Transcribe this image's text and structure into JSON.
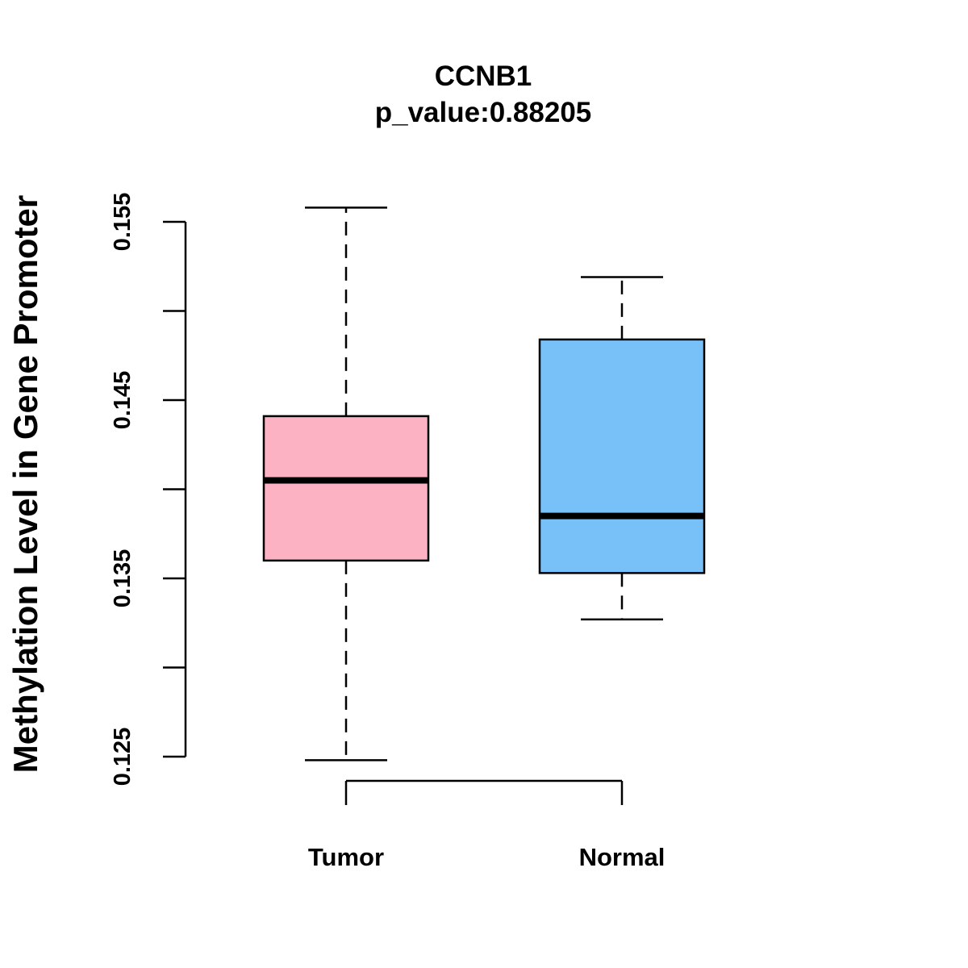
{
  "chart_data": {
    "type": "box",
    "title": "CCNB1",
    "subtitle": "p_value:0.88205",
    "xlabel": "",
    "ylabel": "Methylation Level in Gene Promoter",
    "ylim": [
      0.125,
      0.155
    ],
    "y_ticks": [
      0.125,
      0.13,
      0.135,
      0.14,
      0.145,
      0.15,
      0.155
    ],
    "y_tick_labels": [
      "0.125",
      "",
      "0.135",
      "",
      "0.145",
      "",
      "0.155"
    ],
    "categories": [
      "Tumor",
      "Normal"
    ],
    "series": [
      {
        "name": "Tumor",
        "whisker_low": 0.1248,
        "q1": 0.136,
        "median": 0.1405,
        "q3": 0.1441,
        "whisker_high": 0.1558,
        "color": "#FDB2C4"
      },
      {
        "name": "Normal",
        "whisker_low": 0.1327,
        "q1": 0.1353,
        "median": 0.1385,
        "q3": 0.1484,
        "whisker_high": 0.1519,
        "color": "#78C1F8"
      }
    ],
    "grid": false,
    "legend": "none"
  }
}
